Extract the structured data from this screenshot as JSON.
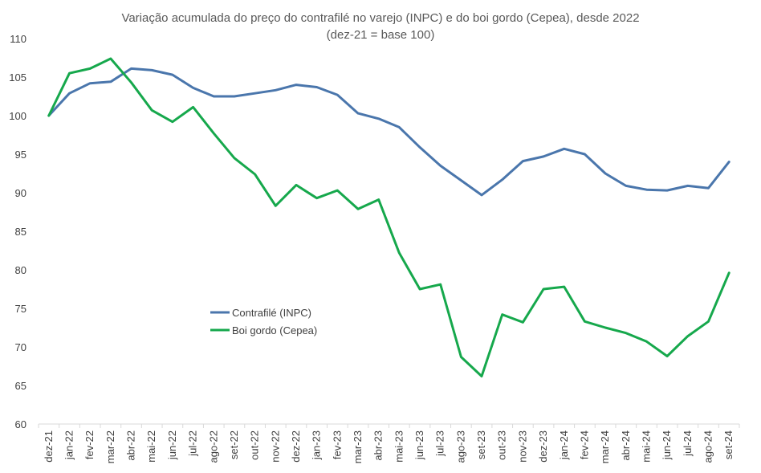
{
  "chart_data": {
    "type": "line",
    "title": "Variação acumulada do preço do contrafilé no varejo (INPC) e do boi gordo (Cepea), desde 2022",
    "subtitle": "(dez-21 = base 100)",
    "xlabel": "",
    "ylabel": "",
    "ylim": [
      60,
      110
    ],
    "yticks": [
      60,
      65,
      70,
      75,
      80,
      85,
      90,
      95,
      100,
      105,
      110
    ],
    "grid": false,
    "legend_position": "left-middle",
    "categories": [
      "dez-21",
      "jan-22",
      "fev-22",
      "mar-22",
      "abr-22",
      "mai-22",
      "jun-22",
      "jul-22",
      "ago-22",
      "set-22",
      "out-22",
      "nov-22",
      "dez-22",
      "jan-23",
      "fev-23",
      "mar-23",
      "abr-23",
      "mai-23",
      "jun-23",
      "jul-23",
      "ago-23",
      "set-23",
      "out-23",
      "nov-23",
      "dez-23",
      "jan-24",
      "fev-24",
      "mar-24",
      "abr-24",
      "mai-24",
      "jun-24",
      "jul-24",
      "ago-24",
      "set-24"
    ],
    "series": [
      {
        "name": "Contrafilé (INPC)",
        "color": "#4a76ac",
        "values": [
          100,
          102.9,
          104.2,
          104.4,
          106.1,
          105.9,
          105.3,
          103.6,
          102.5,
          102.5,
          102.9,
          103.3,
          104.0,
          103.7,
          102.7,
          100.3,
          99.6,
          98.5,
          95.9,
          93.5,
          91.6,
          89.7,
          91.7,
          94.1,
          94.7,
          95.7,
          95.0,
          92.5,
          90.9,
          90.4,
          90.3,
          90.9,
          90.6,
          94.0
        ]
      },
      {
        "name": "Boi gordo (Cepea)",
        "color": "#16a84c",
        "values": [
          100,
          105.5,
          106.1,
          107.4,
          104.3,
          100.7,
          99.2,
          101.1,
          97.7,
          94.5,
          92.4,
          88.3,
          91.0,
          89.3,
          90.3,
          87.9,
          89.1,
          82.2,
          77.5,
          78.1,
          68.7,
          66.2,
          74.2,
          73.2,
          77.5,
          77.8,
          73.3,
          72.5,
          71.8,
          70.7,
          68.8,
          71.4,
          73.3,
          79.6
        ]
      }
    ]
  }
}
